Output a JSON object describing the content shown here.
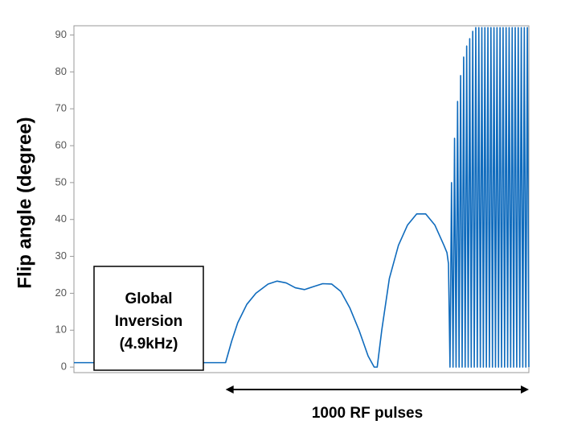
{
  "chart_data": {
    "type": "line",
    "y_label": "Flip angle (degree)",
    "box_text": [
      "Global",
      "Inversion",
      "(4.9kHz)"
    ],
    "arrow_label": "1000 RF pulses",
    "xlim": [
      -500,
      1000
    ],
    "ylim": [
      -1.5,
      92.5
    ],
    "yticks": [
      0,
      10,
      20,
      30,
      40,
      50,
      60,
      70,
      80,
      90
    ],
    "grid": false,
    "series": [
      {
        "color": "#0f6bbd",
        "x": [
          -500,
          0,
          20,
          40,
          70,
          100,
          140,
          170,
          200,
          230,
          260,
          290,
          320,
          350,
          380,
          410,
          440,
          470,
          490,
          500,
          515,
          540,
          570,
          600,
          630,
          660,
          690,
          720,
          730,
          735,
          740,
          745,
          750,
          755,
          760,
          765,
          770,
          775,
          780,
          785,
          790,
          795,
          800,
          805,
          810,
          815,
          820,
          825,
          830,
          835,
          840,
          845,
          850,
          855,
          860,
          865,
          870,
          875,
          880,
          885,
          890,
          895,
          900,
          905,
          910,
          915,
          920,
          925,
          930,
          935,
          940,
          945,
          950,
          955,
          960,
          965,
          970,
          975,
          980,
          985,
          990,
          995,
          1000
        ],
        "values": [
          1.2,
          1.2,
          7,
          12,
          17,
          20,
          22.5,
          23.3,
          22.8,
          21.5,
          21,
          21.8,
          22.6,
          22.5,
          20.5,
          16,
          10,
          3,
          0,
          0,
          10,
          24,
          33,
          38.5,
          41.5,
          41.5,
          38.5,
          33,
          31,
          28,
          0,
          50,
          0,
          62,
          0,
          72,
          0,
          79,
          0,
          84,
          0,
          87,
          0,
          89,
          0,
          91,
          0,
          92,
          0,
          92,
          0,
          92,
          0,
          92,
          0,
          92,
          0,
          92,
          0,
          92,
          0,
          92,
          0,
          92,
          0,
          92,
          0,
          92,
          0,
          92,
          0,
          92,
          0,
          92,
          0,
          92,
          0,
          92,
          0,
          92,
          0,
          92,
          0
        ]
      }
    ]
  }
}
